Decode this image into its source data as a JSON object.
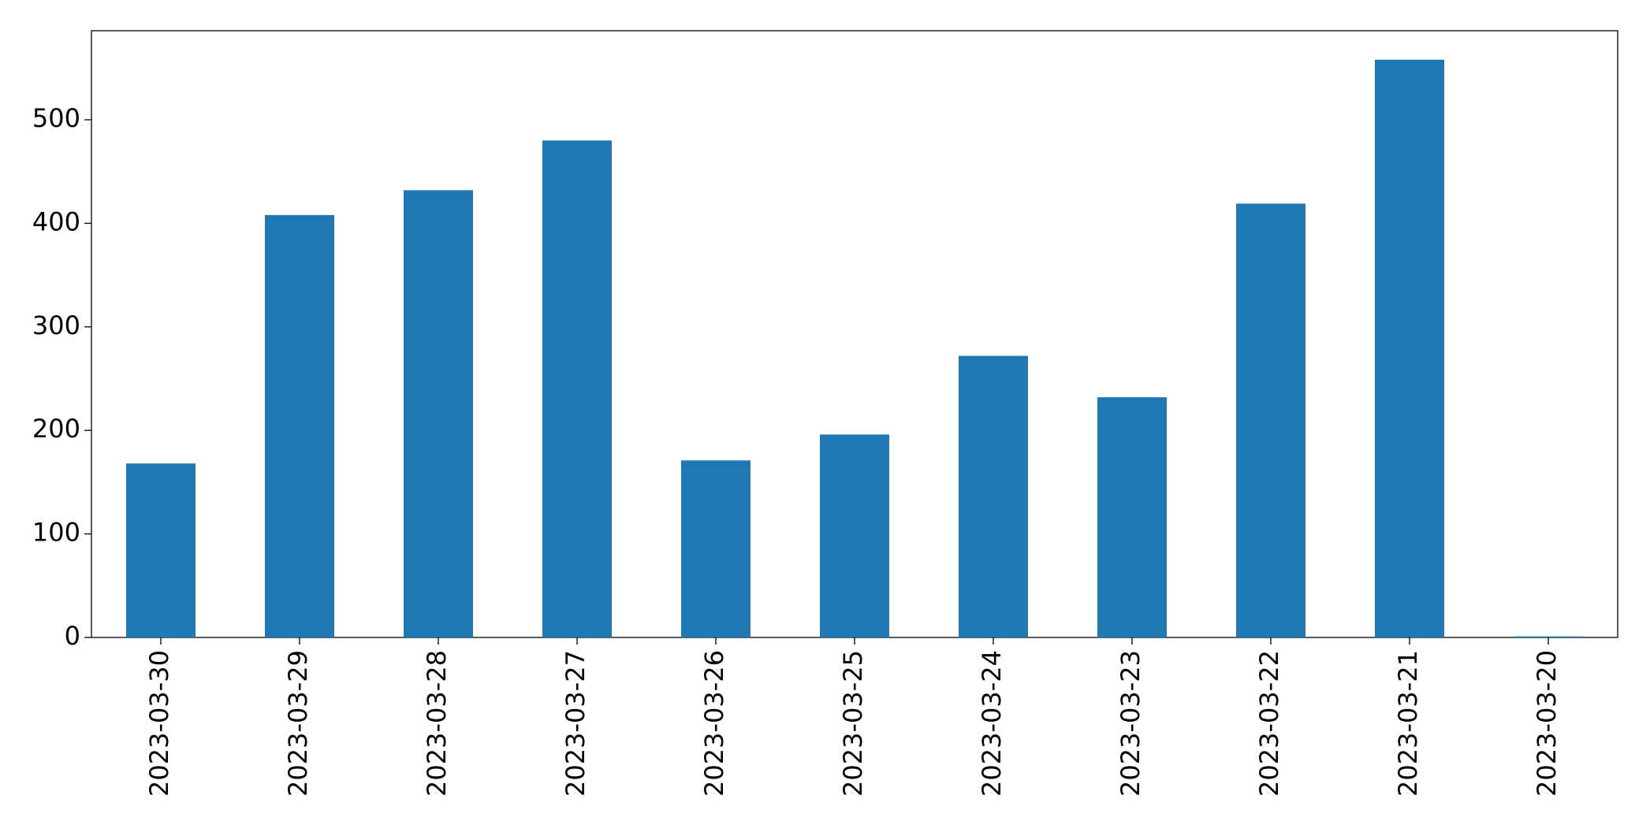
{
  "chart_data": {
    "type": "bar",
    "categories": [
      "2023-03-30",
      "2023-03-29",
      "2023-03-28",
      "2023-03-27",
      "2023-03-26",
      "2023-03-25",
      "2023-03-24",
      "2023-03-23",
      "2023-03-22",
      "2023-03-21",
      "2023-03-20"
    ],
    "values": [
      168,
      408,
      432,
      480,
      171,
      196,
      272,
      232,
      419,
      558,
      1
    ],
    "color": "#1f77b4",
    "ylim": [
      0,
      586
    ],
    "yticks": [
      0,
      100,
      200,
      300,
      400,
      500
    ],
    "grid": false
  }
}
